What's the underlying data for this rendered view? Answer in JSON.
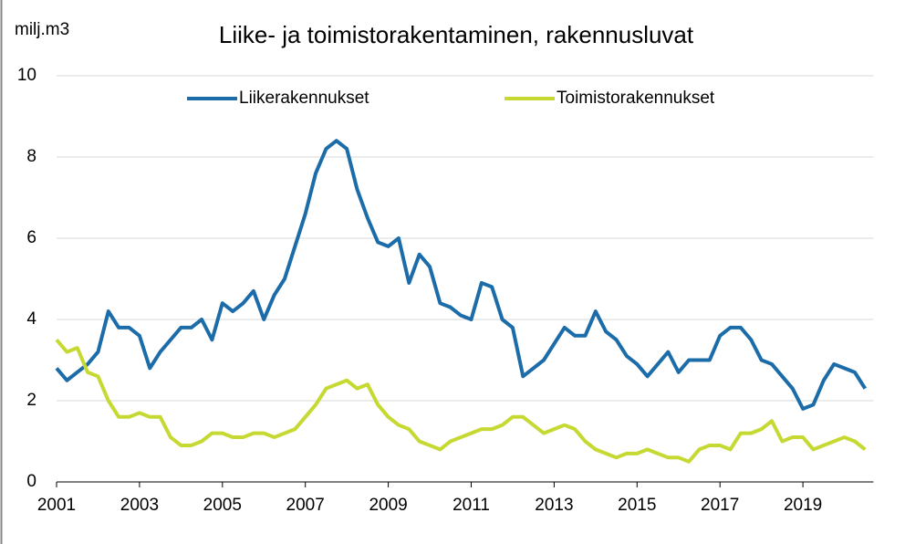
{
  "chart_data": {
    "type": "line",
    "title": "Liike- ja toimistorakentaminen, rakennusluvat",
    "y_label": "milj.m3",
    "x": [
      2001,
      2001.25,
      2001.5,
      2001.75,
      2002,
      2002.25,
      2002.5,
      2002.75,
      2003,
      2003.25,
      2003.5,
      2003.75,
      2004,
      2004.25,
      2004.5,
      2004.75,
      2005,
      2005.25,
      2005.5,
      2005.75,
      2006,
      2006.25,
      2006.5,
      2006.75,
      2007,
      2007.25,
      2007.5,
      2007.75,
      2008,
      2008.25,
      2008.5,
      2008.75,
      2009,
      2009.25,
      2009.5,
      2009.75,
      2010,
      2010.25,
      2010.5,
      2010.75,
      2011,
      2011.25,
      2011.5,
      2011.75,
      2012,
      2012.25,
      2012.5,
      2012.75,
      2013,
      2013.25,
      2013.5,
      2013.75,
      2014,
      2014.25,
      2014.5,
      2014.75,
      2015,
      2015.25,
      2015.5,
      2015.75,
      2016,
      2016.25,
      2016.5,
      2016.75,
      2017,
      2017.25,
      2017.5,
      2017.75,
      2018,
      2018.25,
      2018.5,
      2018.75,
      2019,
      2019.25,
      2019.5,
      2019.75,
      2020,
      2020.25,
      2020.5
    ],
    "series": [
      {
        "name": "Liikerakennukset",
        "color": "#1b6ca8",
        "values": [
          2.8,
          2.5,
          2.7,
          2.9,
          3.2,
          4.2,
          3.8,
          3.8,
          3.6,
          2.8,
          3.2,
          3.5,
          3.8,
          3.8,
          4.0,
          3.5,
          4.4,
          4.2,
          4.4,
          4.7,
          4.0,
          4.6,
          5.0,
          5.8,
          6.6,
          7.6,
          8.2,
          8.4,
          8.2,
          7.2,
          6.5,
          5.9,
          5.8,
          6.0,
          4.9,
          5.6,
          5.3,
          4.4,
          4.3,
          4.1,
          4.0,
          4.9,
          4.8,
          4.0,
          3.8,
          2.6,
          2.8,
          3.0,
          3.4,
          3.8,
          3.6,
          3.6,
          4.2,
          3.7,
          3.5,
          3.1,
          2.9,
          2.6,
          2.9,
          3.2,
          2.7,
          3.0,
          3.0,
          3.0,
          3.6,
          3.8,
          3.8,
          3.5,
          3.0,
          2.9,
          2.6,
          2.3,
          1.8,
          1.9,
          2.5,
          2.9,
          2.8,
          2.7,
          2.3
        ]
      },
      {
        "name": "Toimistorakennukset",
        "color": "#c5d932",
        "values": [
          3.5,
          3.2,
          3.3,
          2.7,
          2.6,
          2.0,
          1.6,
          1.6,
          1.7,
          1.6,
          1.6,
          1.1,
          0.9,
          0.9,
          1.0,
          1.2,
          1.2,
          1.1,
          1.1,
          1.2,
          1.2,
          1.1,
          1.2,
          1.3,
          1.6,
          1.9,
          2.3,
          2.4,
          2.5,
          2.3,
          2.4,
          1.9,
          1.6,
          1.4,
          1.3,
          1.0,
          0.9,
          0.8,
          1.0,
          1.1,
          1.2,
          1.3,
          1.3,
          1.4,
          1.6,
          1.6,
          1.4,
          1.2,
          1.3,
          1.4,
          1.3,
          1.0,
          0.8,
          0.7,
          0.6,
          0.7,
          0.7,
          0.8,
          0.7,
          0.6,
          0.6,
          0.5,
          0.8,
          0.9,
          0.9,
          0.8,
          1.2,
          1.2,
          1.3,
          1.5,
          1.0,
          1.1,
          1.1,
          0.8,
          0.9,
          1.0,
          1.1,
          1.0,
          0.8
        ]
      }
    ],
    "xlim": [
      2001,
      2020.7
    ],
    "xticks": [
      2001,
      2003,
      2005,
      2007,
      2009,
      2011,
      2013,
      2015,
      2017,
      2019
    ],
    "ylim": [
      0,
      10
    ],
    "yticks": [
      0,
      2,
      4,
      6,
      8,
      10
    ],
    "grid": true,
    "legend": "top"
  }
}
